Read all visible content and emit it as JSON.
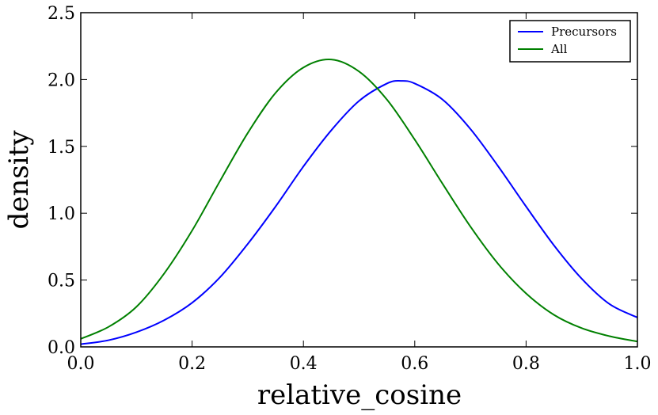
{
  "chart_data": {
    "type": "line",
    "title": "",
    "xlabel": "relative_cosine",
    "ylabel": "density",
    "xlim": [
      0.0,
      1.0
    ],
    "ylim": [
      0.0,
      2.5
    ],
    "xticks": [
      0.0,
      0.2,
      0.4,
      0.6,
      0.8,
      1.0
    ],
    "xtick_labels": [
      "0.0",
      "0.2",
      "0.4",
      "0.6",
      "0.8",
      "1.0"
    ],
    "yticks": [
      0.0,
      0.5,
      1.0,
      1.5,
      2.0,
      2.5
    ],
    "ytick_labels": [
      "0.0",
      "0.5",
      "1.0",
      "1.5",
      "2.0",
      "2.5"
    ],
    "grid": false,
    "legend_position": "top-right",
    "series": [
      {
        "name": "Precursors",
        "color": "#0000ff",
        "x": [
          0.0,
          0.05,
          0.1,
          0.15,
          0.2,
          0.25,
          0.3,
          0.35,
          0.4,
          0.45,
          0.5,
          0.55,
          0.575,
          0.6,
          0.65,
          0.7,
          0.75,
          0.8,
          0.85,
          0.9,
          0.95,
          1.0
        ],
        "y": [
          0.02,
          0.05,
          0.11,
          0.2,
          0.33,
          0.52,
          0.77,
          1.05,
          1.35,
          1.62,
          1.84,
          1.97,
          1.99,
          1.97,
          1.85,
          1.63,
          1.35,
          1.05,
          0.76,
          0.51,
          0.32,
          0.22
        ]
      },
      {
        "name": "All",
        "color": "#008000",
        "x": [
          0.0,
          0.05,
          0.1,
          0.15,
          0.2,
          0.25,
          0.3,
          0.35,
          0.4,
          0.45,
          0.5,
          0.55,
          0.6,
          0.65,
          0.7,
          0.75,
          0.8,
          0.85,
          0.9,
          0.95,
          1.0
        ],
        "y": [
          0.06,
          0.15,
          0.3,
          0.55,
          0.87,
          1.24,
          1.6,
          1.9,
          2.09,
          2.15,
          2.06,
          1.85,
          1.55,
          1.22,
          0.9,
          0.62,
          0.4,
          0.24,
          0.14,
          0.08,
          0.04
        ]
      }
    ]
  }
}
